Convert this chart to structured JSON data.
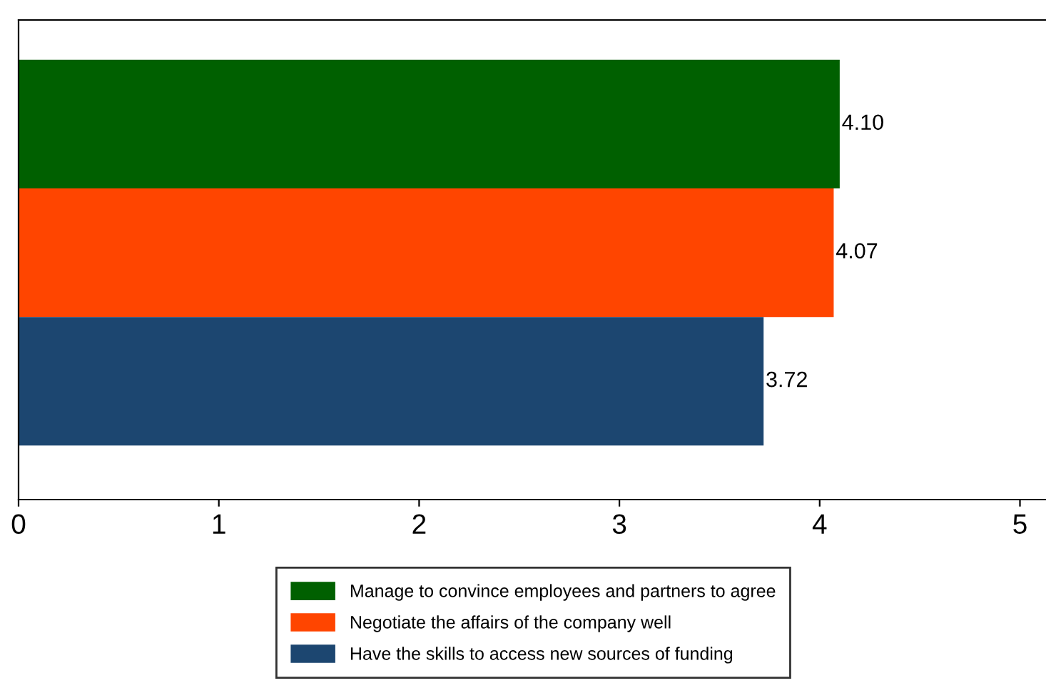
{
  "chart_data": {
    "type": "bar",
    "orientation": "horizontal",
    "categories": [
      null,
      null,
      null
    ],
    "series": [
      {
        "name": "Manage to convince employees and partners to agree",
        "color": "#006000",
        "values": [
          4.1,
          null,
          null
        ]
      },
      {
        "name": "Negotiate the affairs of the company well",
        "color": "#ff4500",
        "values": [
          null,
          4.07,
          null
        ]
      },
      {
        "name": "Have the skills to access new sources of funding",
        "color": "#1c4670",
        "values": [
          null,
          null,
          3.72
        ]
      }
    ],
    "xlim": [
      0,
      5.13
    ],
    "xticks": [
      0,
      1,
      2,
      3,
      4,
      5
    ],
    "grid": false,
    "legend": "bottom",
    "value_labels": [
      [
        "4.10",
        null,
        null
      ],
      [
        null,
        "4.07",
        null
      ],
      [
        null,
        null,
        "3.72"
      ]
    ]
  }
}
